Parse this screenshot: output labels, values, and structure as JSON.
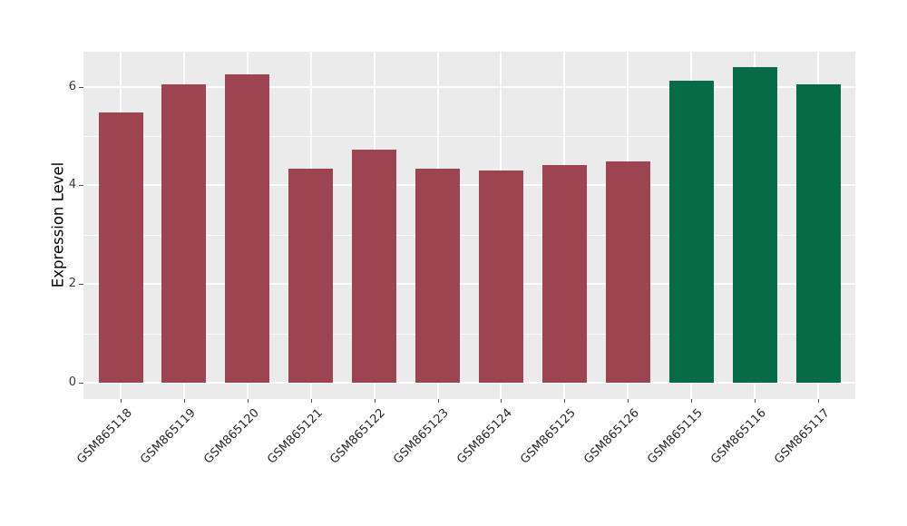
{
  "chart_data": {
    "type": "bar",
    "title": "",
    "xlabel": "",
    "ylabel": "Expression Level",
    "categories": [
      "GSM865118",
      "GSM865119",
      "GSM865120",
      "GSM865121",
      "GSM865122",
      "GSM865123",
      "GSM865124",
      "GSM865125",
      "GSM865126",
      "GSM865115",
      "GSM865116",
      "GSM865117"
    ],
    "values": [
      5.48,
      6.04,
      6.25,
      4.33,
      4.72,
      4.33,
      4.3,
      4.42,
      4.49,
      6.13,
      6.4,
      6.04
    ],
    "bar_colors": [
      "#9D4452",
      "#9D4452",
      "#9D4452",
      "#9D4452",
      "#9D4452",
      "#9D4452",
      "#9D4452",
      "#9D4452",
      "#9D4452",
      "#066C47",
      "#066C47",
      "#066C47"
    ],
    "group_colors": {
      "maroon": "#9D4452",
      "green": "#066C47"
    },
    "yticks": [
      0,
      2,
      4,
      6
    ],
    "ytick_labels": [
      "0",
      "2",
      "4",
      "6"
    ],
    "minor_yticks": [
      1,
      3,
      5
    ],
    "ylim": [
      -0.33,
      6.71
    ],
    "grid": "on",
    "legend": "none",
    "panel_bg": "#EBEBEB",
    "grid_color": "#FFFFFF",
    "tick_color": "#4d4d4d",
    "label_color": "#262626"
  }
}
